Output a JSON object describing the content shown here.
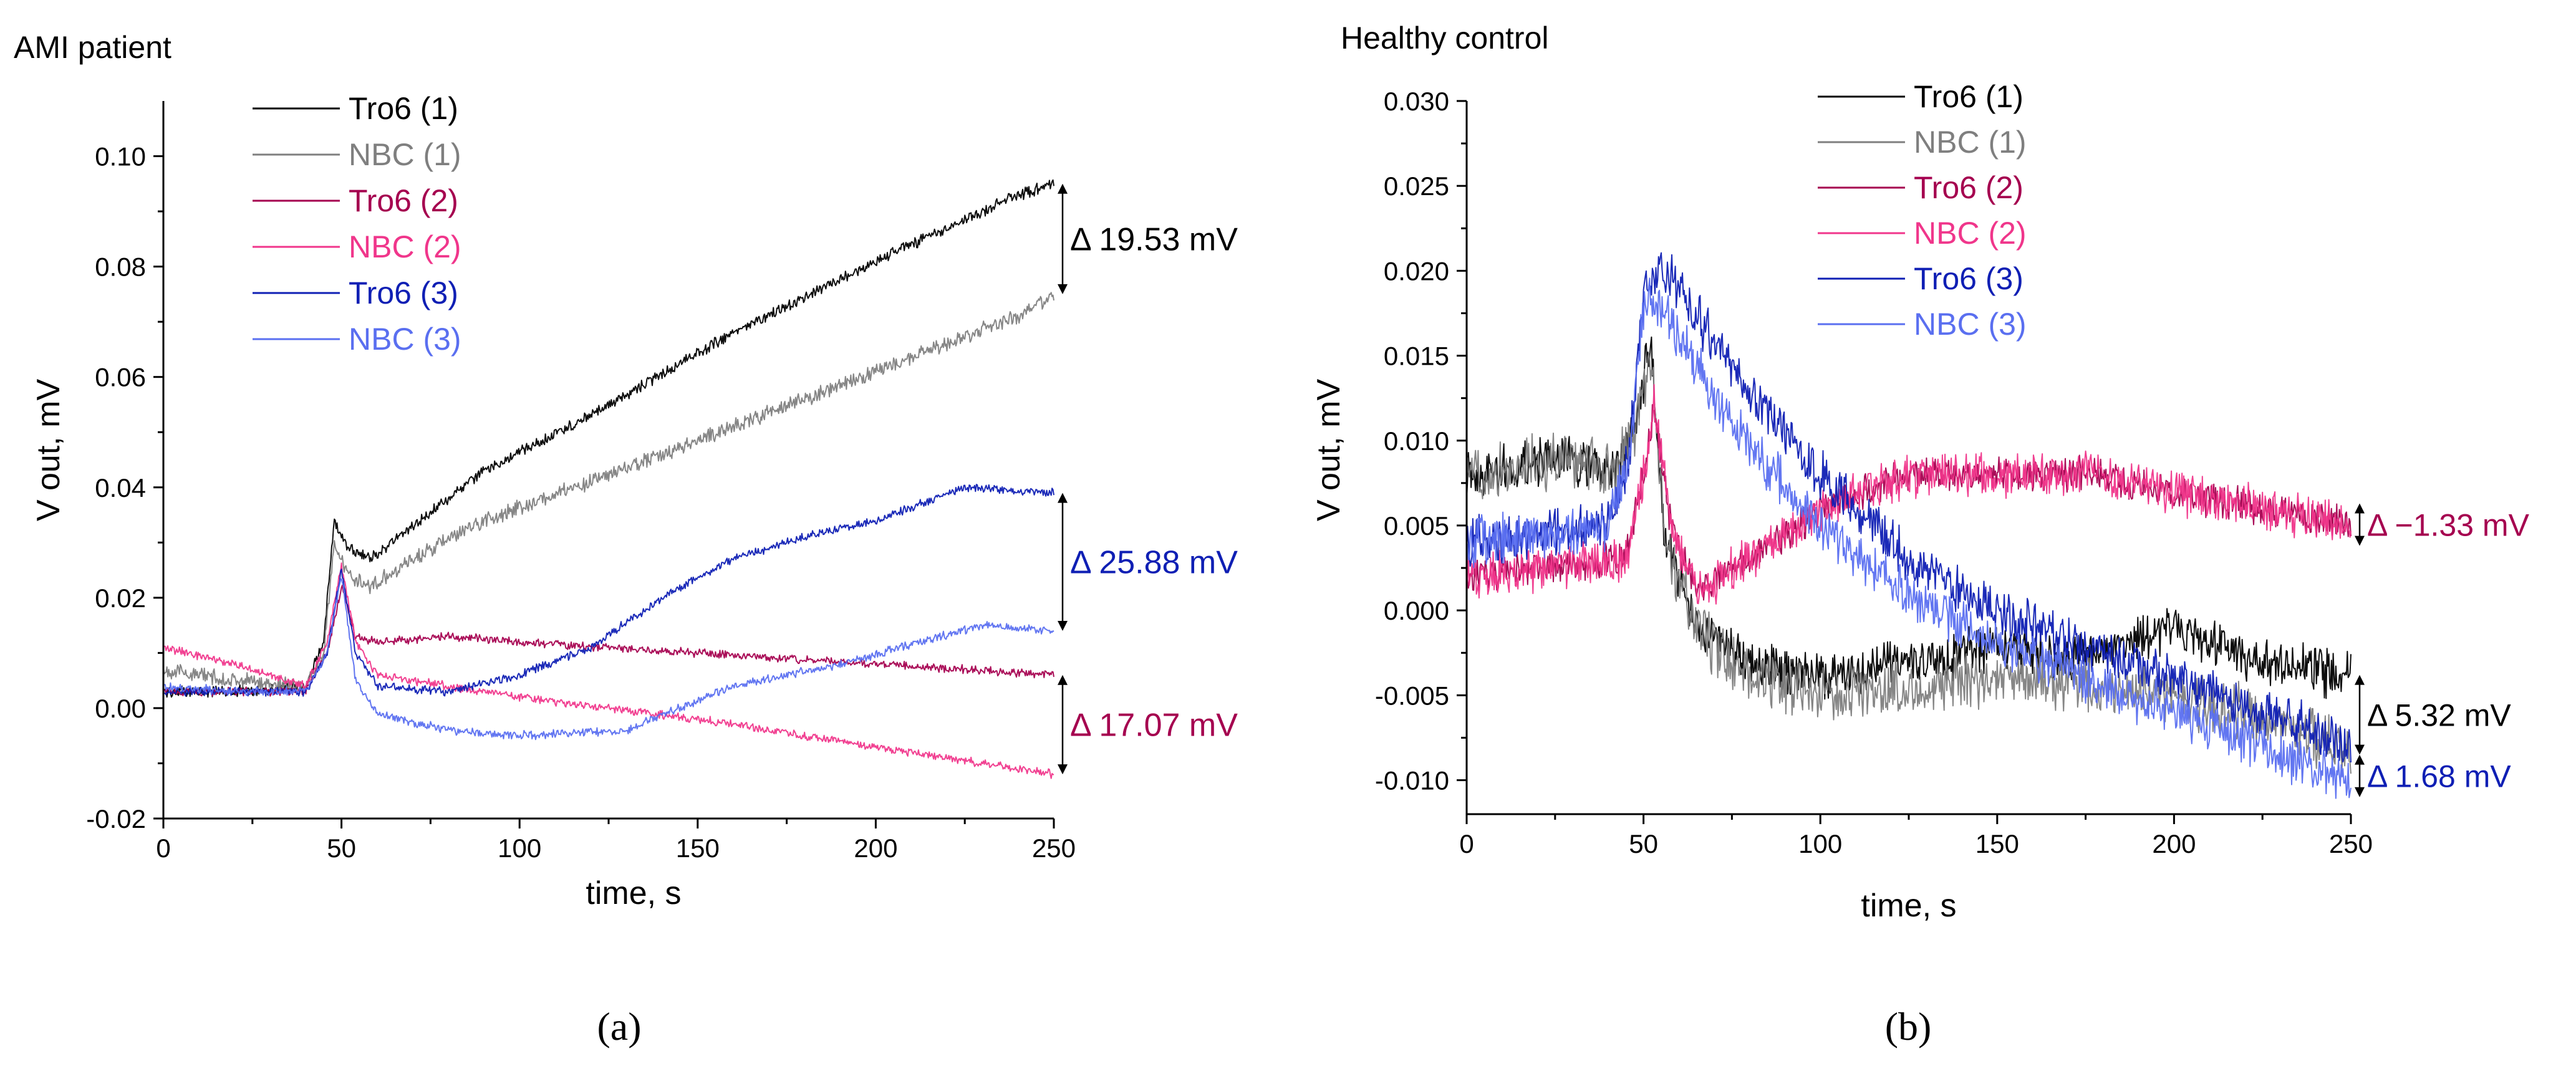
{
  "figure": {
    "colors": {
      "black": "#000000",
      "gray": "#7f7f7f",
      "dark_magenta": "#a5004f",
      "pink": "#f0368b",
      "dark_blue": "#0f1fb4",
      "light_blue": "#5a6ff0"
    }
  },
  "chart_data": [
    {
      "type": "line",
      "title": "AMI patient",
      "caption": "(a)",
      "xlabel": "time, s",
      "ylabel": "V out, mV",
      "xlim": [
        0,
        250
      ],
      "ylim": [
        -0.02,
        0.11
      ],
      "xticks": [
        0,
        50,
        100,
        150,
        200,
        250
      ],
      "xtick_labels": [
        "0",
        "50",
        "100",
        "150",
        "200",
        "250"
      ],
      "yticks": [
        -0.02,
        0.0,
        0.02,
        0.04,
        0.06,
        0.08,
        0.1
      ],
      "ytick_labels": [
        "-0.02",
        "0.00",
        "0.02",
        "0.04",
        "0.06",
        "0.08",
        "0.10"
      ],
      "legend_position": "top-left",
      "series": [
        {
          "name": "Tro6 (1)",
          "color": "#000000",
          "noise": 0.0008,
          "x": [
            0,
            20,
            40,
            45,
            48,
            52,
            58,
            70,
            90,
            120,
            160,
            200,
            240,
            250
          ],
          "y": [
            0.003,
            0.003,
            0.004,
            0.012,
            0.034,
            0.029,
            0.027,
            0.033,
            0.043,
            0.053,
            0.068,
            0.081,
            0.093,
            0.095
          ]
        },
        {
          "name": "NBC (1)",
          "color": "#7f7f7f",
          "noise": 0.0011,
          "x": [
            0,
            20,
            40,
            45,
            48,
            52,
            58,
            70,
            90,
            120,
            160,
            200,
            240,
            250
          ],
          "y": [
            0.007,
            0.005,
            0.004,
            0.01,
            0.03,
            0.024,
            0.022,
            0.027,
            0.034,
            0.041,
            0.051,
            0.061,
            0.071,
            0.075
          ]
        },
        {
          "name": "Tro6 (2)",
          "color": "#a5004f",
          "noise": 0.0006,
          "x": [
            0,
            20,
            40,
            46,
            50,
            54,
            60,
            80,
            100,
            150,
            200,
            250
          ],
          "y": [
            0.003,
            0.003,
            0.003,
            0.01,
            0.022,
            0.013,
            0.012,
            0.013,
            0.012,
            0.01,
            0.008,
            0.006
          ]
        },
        {
          "name": "NBC (2)",
          "color": "#f0368b",
          "noise": 0.0006,
          "x": [
            0,
            20,
            40,
            46,
            50,
            54,
            60,
            100,
            150,
            200,
            250
          ],
          "y": [
            0.011,
            0.008,
            0.004,
            0.012,
            0.026,
            0.012,
            0.006,
            0.002,
            -0.002,
            -0.007,
            -0.012
          ]
        },
        {
          "name": "Tro6 (3)",
          "color": "#0f1fb4",
          "noise": 0.0006,
          "x": [
            0,
            20,
            40,
            46,
            50,
            54,
            60,
            80,
            100,
            120,
            140,
            160,
            180,
            200,
            225,
            250
          ],
          "y": [
            0.003,
            0.003,
            0.003,
            0.01,
            0.025,
            0.01,
            0.004,
            0.003,
            0.006,
            0.011,
            0.02,
            0.027,
            0.031,
            0.034,
            0.04,
            0.039
          ]
        },
        {
          "name": "NBC (3)",
          "color": "#5a6ff0",
          "noise": 0.0006,
          "x": [
            0,
            20,
            40,
            46,
            50,
            54,
            60,
            80,
            100,
            130,
            160,
            190,
            230,
            250
          ],
          "y": [
            0.004,
            0.003,
            0.003,
            0.01,
            0.024,
            0.005,
            -0.001,
            -0.004,
            -0.005,
            -0.004,
            0.004,
            0.008,
            0.015,
            0.014
          ]
        }
      ],
      "annotations": [
        {
          "label": "Δ 19.53 mV",
          "color": "#000000",
          "x": 250,
          "y_from": 0.095,
          "y_to": 0.075
        },
        {
          "label": "Δ 25.88 mV",
          "color": "#0f1fb4",
          "x": 250,
          "y_from": 0.039,
          "y_to": 0.014
        },
        {
          "label": "Δ 17.07 mV",
          "color": "#a5004f",
          "x": 250,
          "y_from": 0.006,
          "y_to": -0.012
        }
      ]
    },
    {
      "type": "line",
      "title": "Healthy control",
      "caption": "(b)",
      "xlabel": "time, s",
      "ylabel": "V out, mV",
      "xlim": [
        0,
        250
      ],
      "ylim": [
        -0.012,
        0.03
      ],
      "xticks": [
        0,
        50,
        100,
        150,
        200,
        250
      ],
      "xtick_labels": [
        "0",
        "50",
        "100",
        "150",
        "200",
        "250"
      ],
      "yticks": [
        -0.01,
        -0.005,
        0.0,
        0.005,
        0.01,
        0.015,
        0.02,
        0.025,
        0.03
      ],
      "ytick_labels": [
        "-0.010",
        "-0.005",
        "0.000",
        "0.005",
        "0.010",
        "0.015",
        "0.020",
        "0.025",
        "0.030"
      ],
      "legend_position": "top-center",
      "series": [
        {
          "name": "Tro6 (1)",
          "color": "#000000",
          "noise": 0.0011,
          "x": [
            0,
            30,
            42,
            48,
            52,
            56,
            65,
            80,
            100,
            130,
            150,
            170,
            200,
            225,
            250
          ],
          "y": [
            0.008,
            0.009,
            0.008,
            0.011,
            0.016,
            0.004,
            -0.001,
            -0.003,
            -0.004,
            -0.003,
            -0.002,
            -0.003,
            -0.001,
            -0.003,
            -0.004
          ]
        },
        {
          "name": "NBC (1)",
          "color": "#7f7f7f",
          "noise": 0.0013,
          "x": [
            0,
            30,
            42,
            48,
            52,
            56,
            65,
            80,
            100,
            150,
            200,
            250
          ],
          "y": [
            0.008,
            0.009,
            0.008,
            0.011,
            0.015,
            0.004,
            -0.001,
            -0.004,
            -0.005,
            -0.004,
            -0.005,
            -0.008
          ]
        },
        {
          "name": "Tro6 (2)",
          "color": "#a5004f",
          "noise": 0.0008,
          "x": [
            0,
            45,
            50,
            53,
            57,
            65,
            80,
            100,
            125,
            150,
            175,
            200,
            225,
            250
          ],
          "y": [
            0.002,
            0.003,
            0.008,
            0.012,
            0.006,
            0.001,
            0.003,
            0.006,
            0.008,
            0.008,
            0.008,
            0.007,
            0.006,
            0.005
          ]
        },
        {
          "name": "NBC (2)",
          "color": "#f0368b",
          "noise": 0.001,
          "x": [
            0,
            45,
            50,
            53,
            57,
            65,
            80,
            100,
            125,
            150,
            175,
            200,
            225,
            250
          ],
          "y": [
            0.002,
            0.003,
            0.008,
            0.012,
            0.006,
            0.001,
            0.003,
            0.006,
            0.008,
            0.008,
            0.008,
            0.007,
            0.006,
            0.005
          ]
        },
        {
          "name": "Tro6 (3)",
          "color": "#0f1fb4",
          "noise": 0.0011,
          "x": [
            0,
            40,
            46,
            50,
            55,
            60,
            75,
            100,
            125,
            150,
            175,
            200,
            225,
            250
          ],
          "y": [
            0.004,
            0.005,
            0.009,
            0.019,
            0.02,
            0.019,
            0.014,
            0.008,
            0.003,
            0.0,
            -0.002,
            -0.004,
            -0.006,
            -0.008
          ]
        },
        {
          "name": "NBC (3)",
          "color": "#5a6ff0",
          "noise": 0.0011,
          "x": [
            0,
            40,
            46,
            50,
            55,
            60,
            75,
            100,
            125,
            150,
            175,
            200,
            225,
            250
          ],
          "y": [
            0.004,
            0.005,
            0.009,
            0.018,
            0.018,
            0.016,
            0.011,
            0.005,
            0.001,
            -0.002,
            -0.004,
            -0.006,
            -0.008,
            -0.01
          ]
        }
      ],
      "annotations": [
        {
          "label": "Δ −1.33 mV",
          "color": "#a5004f",
          "x": 250,
          "y_from": 0.0063,
          "y_to": 0.0038
        },
        {
          "label": "Δ 5.32 mV",
          "color": "#000000",
          "x": 250,
          "y_from": -0.0038,
          "y_to": -0.0085
        },
        {
          "label": "Δ 1.68 mV",
          "color": "#0f1fb4",
          "x": 250,
          "y_from": -0.0085,
          "y_to": -0.011
        }
      ]
    }
  ]
}
